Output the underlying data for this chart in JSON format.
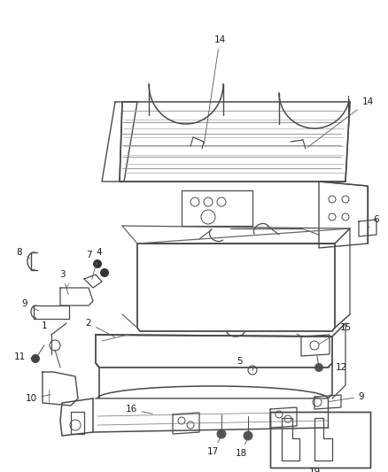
{
  "background_color": "#ffffff",
  "line_color": "#4a4a4a",
  "label_color": "#1a1a1a",
  "fig_width": 4.38,
  "fig_height": 5.33,
  "dpi": 100,
  "label_fontsize": 7.5
}
